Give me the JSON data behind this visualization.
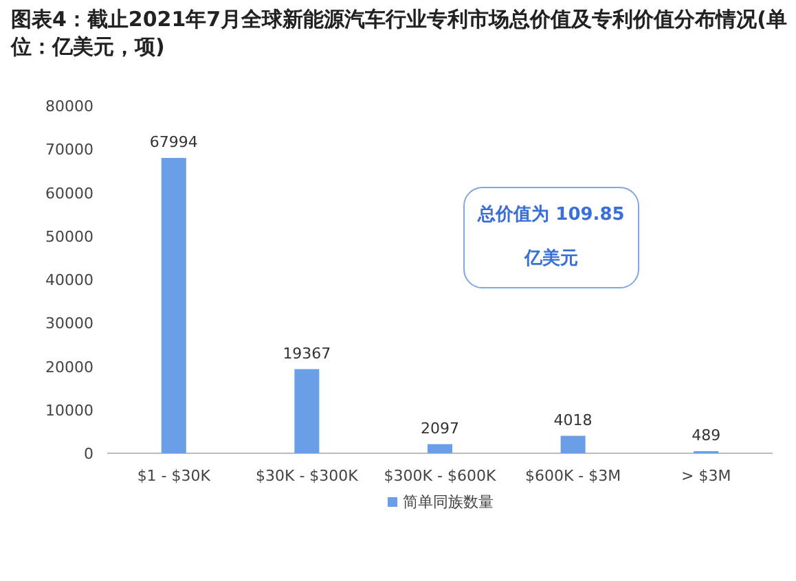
{
  "chart_data": {
    "type": "bar",
    "title": "图表4：截止2021年7月全球新能源汽车行业专利市场总价值及专利价值分布情况(单位：亿美元，项)",
    "categories": [
      "$1 - $30K",
      "$30K - $300K",
      "$300K - $600K",
      "$600K - $3M",
      "> $3M"
    ],
    "series": [
      {
        "name": "简单同族数量",
        "color": "#6a9fe8",
        "values": [
          67994,
          19367,
          2097,
          4018,
          489
        ]
      }
    ],
    "ylim": [
      0,
      80000
    ],
    "yticks": [
      0,
      10000,
      20000,
      30000,
      40000,
      50000,
      60000,
      70000,
      80000
    ],
    "data_labels": true,
    "legend": "bottom",
    "grid": false,
    "annotations": [
      "总价值为 109.85 亿美元"
    ]
  }
}
